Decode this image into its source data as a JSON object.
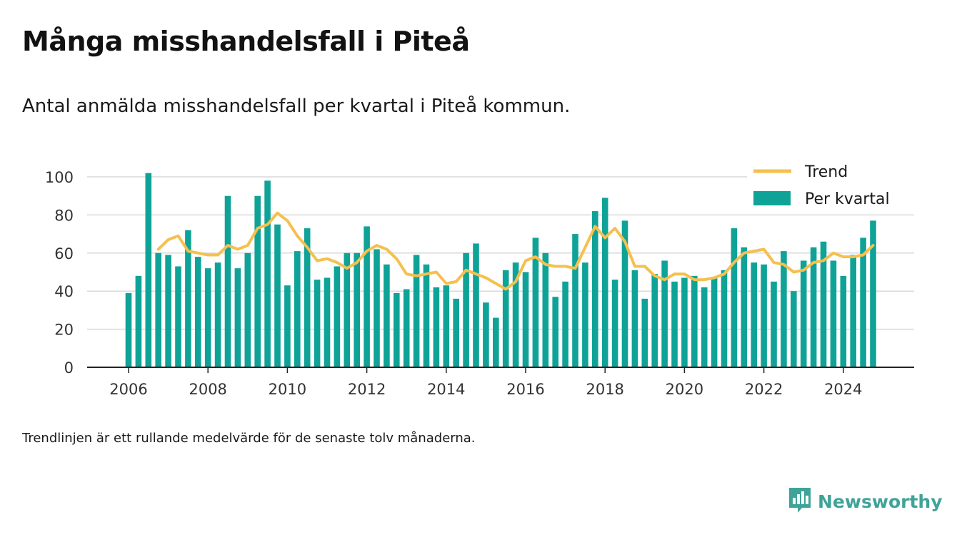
{
  "title": "Många misshandelsfall i Piteå",
  "subtitle": "Antal anmälda misshandelsfall per kvartal i Piteå kommun.",
  "note": "Trendlinjen är ett rullande medelvärde för de senaste tolv månaderna.",
  "brand": {
    "name": "Newsworthy",
    "icon": "newsworthy-chart-icon",
    "color": "#3fa398"
  },
  "colors": {
    "bar": "#0fa398",
    "trend": "#f5c04e",
    "grid": "#d9d9d9",
    "axis": "#222222"
  },
  "chart_data": {
    "type": "bar",
    "xlabel": "",
    "ylabel": "",
    "ylim": [
      0,
      100
    ],
    "yticks": [
      0,
      20,
      40,
      60,
      80,
      100
    ],
    "xticks": [
      "2006",
      "2008",
      "2010",
      "2012",
      "2014",
      "2016",
      "2018",
      "2020",
      "2022",
      "2024"
    ],
    "grid": true,
    "legend_position": "top-right",
    "start_quarter": "2006-Q1",
    "series": [
      {
        "name": "Per kvartal",
        "type": "bar",
        "values": [
          39,
          48,
          102,
          60,
          59,
          53,
          72,
          58,
          52,
          55,
          90,
          52,
          60,
          90,
          98,
          75,
          43,
          61,
          73,
          46,
          47,
          53,
          60,
          60,
          74,
          62,
          54,
          39,
          41,
          59,
          54,
          42,
          43,
          36,
          60,
          65,
          34,
          26,
          51,
          55,
          50,
          68,
          60,
          37,
          45,
          70,
          55,
          82,
          89,
          46,
          77,
          51,
          36,
          49,
          56,
          45,
          47,
          48,
          42,
          47,
          51,
          73,
          63,
          55,
          54,
          45,
          61,
          40,
          56,
          63,
          66,
          56,
          48,
          59,
          68,
          77
        ]
      },
      {
        "name": "Trend",
        "type": "line",
        "values": [
          null,
          null,
          null,
          62,
          67,
          69,
          61,
          60,
          59,
          59,
          64,
          62,
          64,
          73,
          75,
          81,
          77,
          69,
          63,
          56,
          57,
          55,
          52,
          55,
          61,
          64,
          62,
          57,
          49,
          48,
          49,
          50,
          44,
          45,
          51,
          49,
          47,
          44,
          41,
          45,
          56,
          58,
          54,
          53,
          53,
          52,
          63,
          74,
          68,
          73,
          66,
          53,
          53,
          48,
          46,
          49,
          49,
          46,
          46,
          47,
          49,
          55,
          60,
          61,
          62,
          55,
          54,
          50,
          51,
          55,
          56,
          60,
          58,
          58,
          59,
          64
        ]
      }
    ]
  }
}
